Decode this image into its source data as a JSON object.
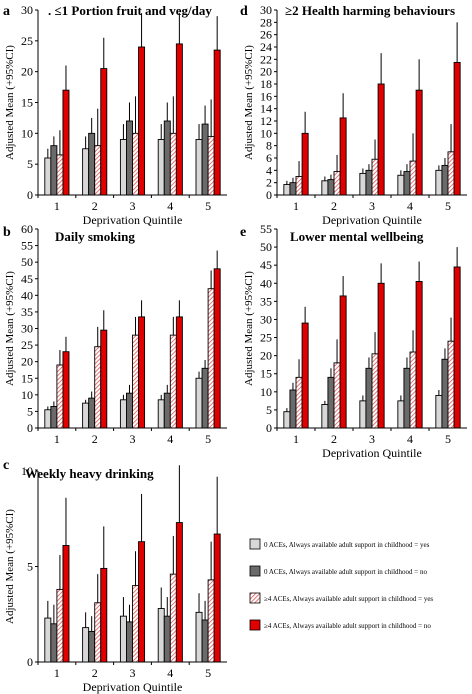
{
  "legend": {
    "placement": "right of panel c",
    "items": [
      {
        "label": "0 ACEs, Always available adult support in childhood = yes",
        "fill": "#d8d8d8",
        "pattern": "solid"
      },
      {
        "label": "0 ACEs, Always available adult support in childhood = no",
        "fill": "#6a6a6a",
        "pattern": "solid"
      },
      {
        "label": "≥4 ACEs, Always available adult support in childhood = yes",
        "fill": "#f4b5b5",
        "pattern": "hatch"
      },
      {
        "label": "≥4 ACEs, Always available adult support in childhood = no",
        "fill": "#e00000",
        "pattern": "solid"
      }
    ]
  },
  "colors": {
    "s1": "#d8d8d8",
    "s2": "#6a6a6a",
    "s3_hatch": "#e05050",
    "s4": "#e00000",
    "errorbar": "#000000"
  },
  "chart_data": [
    {
      "panel": "a",
      "type": "bar",
      "title": ". ≤1 Portion fruit and veg/day",
      "xlabel": "Deprivation Quintile",
      "ylabel": "Adjusted Mean (+95%CI)",
      "categories": [
        "1",
        "2",
        "3",
        "4",
        "5"
      ],
      "ylim": [
        0,
        30
      ],
      "yticks": [
        0,
        5,
        10,
        15,
        20,
        25,
        30
      ],
      "grid": false,
      "series": [
        {
          "values": [
            6.0,
            7.5,
            9.0,
            9.0,
            9.0
          ],
          "upper": [
            7.5,
            9.5,
            11.5,
            11.5,
            11.5
          ]
        },
        {
          "values": [
            8.0,
            10.0,
            12.0,
            12.0,
            11.5
          ],
          "upper": [
            9.5,
            12.5,
            15.0,
            15.0,
            14.5
          ]
        },
        {
          "values": [
            6.5,
            8.0,
            10.0,
            10.0,
            9.5
          ],
          "upper": [
            10.5,
            14.0,
            16.0,
            16.0,
            15.5
          ]
        },
        {
          "values": [
            17.0,
            20.5,
            24.0,
            24.5,
            23.5
          ],
          "upper": [
            21.0,
            25.5,
            29.5,
            29.5,
            29.0
          ]
        }
      ]
    },
    {
      "panel": "d",
      "type": "bar",
      "title": "≥2 Health harming behaviours",
      "xlabel": "Deprivation Quintile",
      "ylabel": "Adjusted Mean (+95%CI)",
      "categories": [
        "1",
        "2",
        "3",
        "4",
        "5"
      ],
      "ylim": [
        0,
        30
      ],
      "yticks": [
        0,
        2,
        4,
        6,
        8,
        10,
        12,
        14,
        16,
        18,
        20,
        22,
        24,
        26,
        28,
        30
      ],
      "grid": false,
      "series": [
        {
          "values": [
            1.7,
            2.3,
            3.5,
            3.2,
            4.0
          ],
          "upper": [
            2.3,
            3.0,
            4.3,
            4.0,
            4.8
          ]
        },
        {
          "values": [
            2.0,
            2.5,
            4.0,
            3.8,
            4.8
          ],
          "upper": [
            2.8,
            3.3,
            5.0,
            5.0,
            6.0
          ]
        },
        {
          "values": [
            3.0,
            3.8,
            5.8,
            5.5,
            7.0
          ],
          "upper": [
            5.5,
            6.5,
            9.0,
            10.0,
            11.5
          ]
        },
        {
          "values": [
            10.0,
            12.5,
            18.0,
            17.0,
            21.5
          ],
          "upper": [
            13.5,
            16.5,
            23.0,
            22.0,
            28.0
          ]
        }
      ]
    },
    {
      "panel": "b",
      "type": "bar",
      "title": "Daily smoking",
      "xlabel": "",
      "ylabel": "Adjusted Mean (+95%CI)",
      "categories": [
        "1",
        "2",
        "3",
        "4",
        "5"
      ],
      "ylim": [
        0,
        60
      ],
      "yticks": [
        0,
        5,
        10,
        15,
        20,
        25,
        30,
        35,
        40,
        45,
        50,
        55,
        60
      ],
      "grid": false,
      "series": [
        {
          "values": [
            5.5,
            7.5,
            8.5,
            8.5,
            15.0
          ],
          "upper": [
            6.5,
            8.5,
            10.0,
            10.0,
            17.0
          ]
        },
        {
          "values": [
            6.5,
            9.0,
            10.5,
            10.5,
            18.0
          ],
          "upper": [
            8.0,
            11.0,
            13.0,
            13.0,
            20.5
          ]
        },
        {
          "values": [
            19.0,
            24.5,
            28.0,
            28.0,
            42.0
          ],
          "upper": [
            23.5,
            30.5,
            33.5,
            33.5,
            47.5
          ]
        },
        {
          "values": [
            23.0,
            29.5,
            33.5,
            33.5,
            48.0
          ],
          "upper": [
            27.5,
            35.5,
            38.5,
            38.5,
            53.5
          ]
        }
      ]
    },
    {
      "panel": "e",
      "type": "bar",
      "title": "Lower mental wellbeing",
      "xlabel": "Deprivation Quintile",
      "ylabel": "Adjusted Mean (+95%CI)",
      "categories": [
        "1",
        "2",
        "3",
        "4",
        "5"
      ],
      "ylim": [
        0,
        55
      ],
      "yticks": [
        0,
        5,
        10,
        15,
        20,
        25,
        30,
        35,
        40,
        45,
        50,
        55
      ],
      "grid": false,
      "series": [
        {
          "values": [
            4.5,
            6.5,
            7.5,
            7.5,
            9.0
          ],
          "upper": [
            5.5,
            7.5,
            9.0,
            9.0,
            10.5
          ]
        },
        {
          "values": [
            10.5,
            14.0,
            16.5,
            16.5,
            19.0
          ],
          "upper": [
            12.5,
            16.5,
            19.5,
            19.5,
            22.0
          ]
        },
        {
          "values": [
            14.0,
            18.0,
            20.5,
            21.0,
            24.0
          ],
          "upper": [
            19.0,
            24.5,
            26.5,
            27.0,
            30.5
          ]
        },
        {
          "values": [
            29.0,
            36.5,
            40.0,
            40.5,
            44.5
          ],
          "upper": [
            33.5,
            42.0,
            45.5,
            46.0,
            50.0
          ]
        }
      ]
    },
    {
      "panel": "c",
      "type": "bar",
      "title": "Weekly heavy drinking",
      "xlabel": "Deprivation Quintile",
      "ylabel": "Adjusted Mean (+95%CI)",
      "categories": [
        "1",
        "2",
        "3",
        "4",
        "5"
      ],
      "ylim": [
        0,
        10
      ],
      "yticks": [
        0,
        5,
        10
      ],
      "grid": false,
      "series": [
        {
          "values": [
            2.3,
            1.8,
            2.4,
            2.8,
            2.6
          ],
          "upper": [
            3.2,
            2.6,
            3.4,
            3.9,
            3.6
          ]
        },
        {
          "values": [
            2.0,
            1.6,
            2.1,
            2.4,
            2.2
          ],
          "upper": [
            3.0,
            2.4,
            3.0,
            3.4,
            3.2
          ]
        },
        {
          "values": [
            3.8,
            3.1,
            4.0,
            4.6,
            4.3
          ],
          "upper": [
            5.6,
            4.6,
            5.8,
            6.6,
            6.3
          ]
        },
        {
          "values": [
            6.1,
            4.9,
            6.3,
            7.3,
            6.7
          ],
          "upper": [
            8.6,
            7.1,
            8.8,
            10.3,
            9.7
          ]
        }
      ]
    }
  ]
}
